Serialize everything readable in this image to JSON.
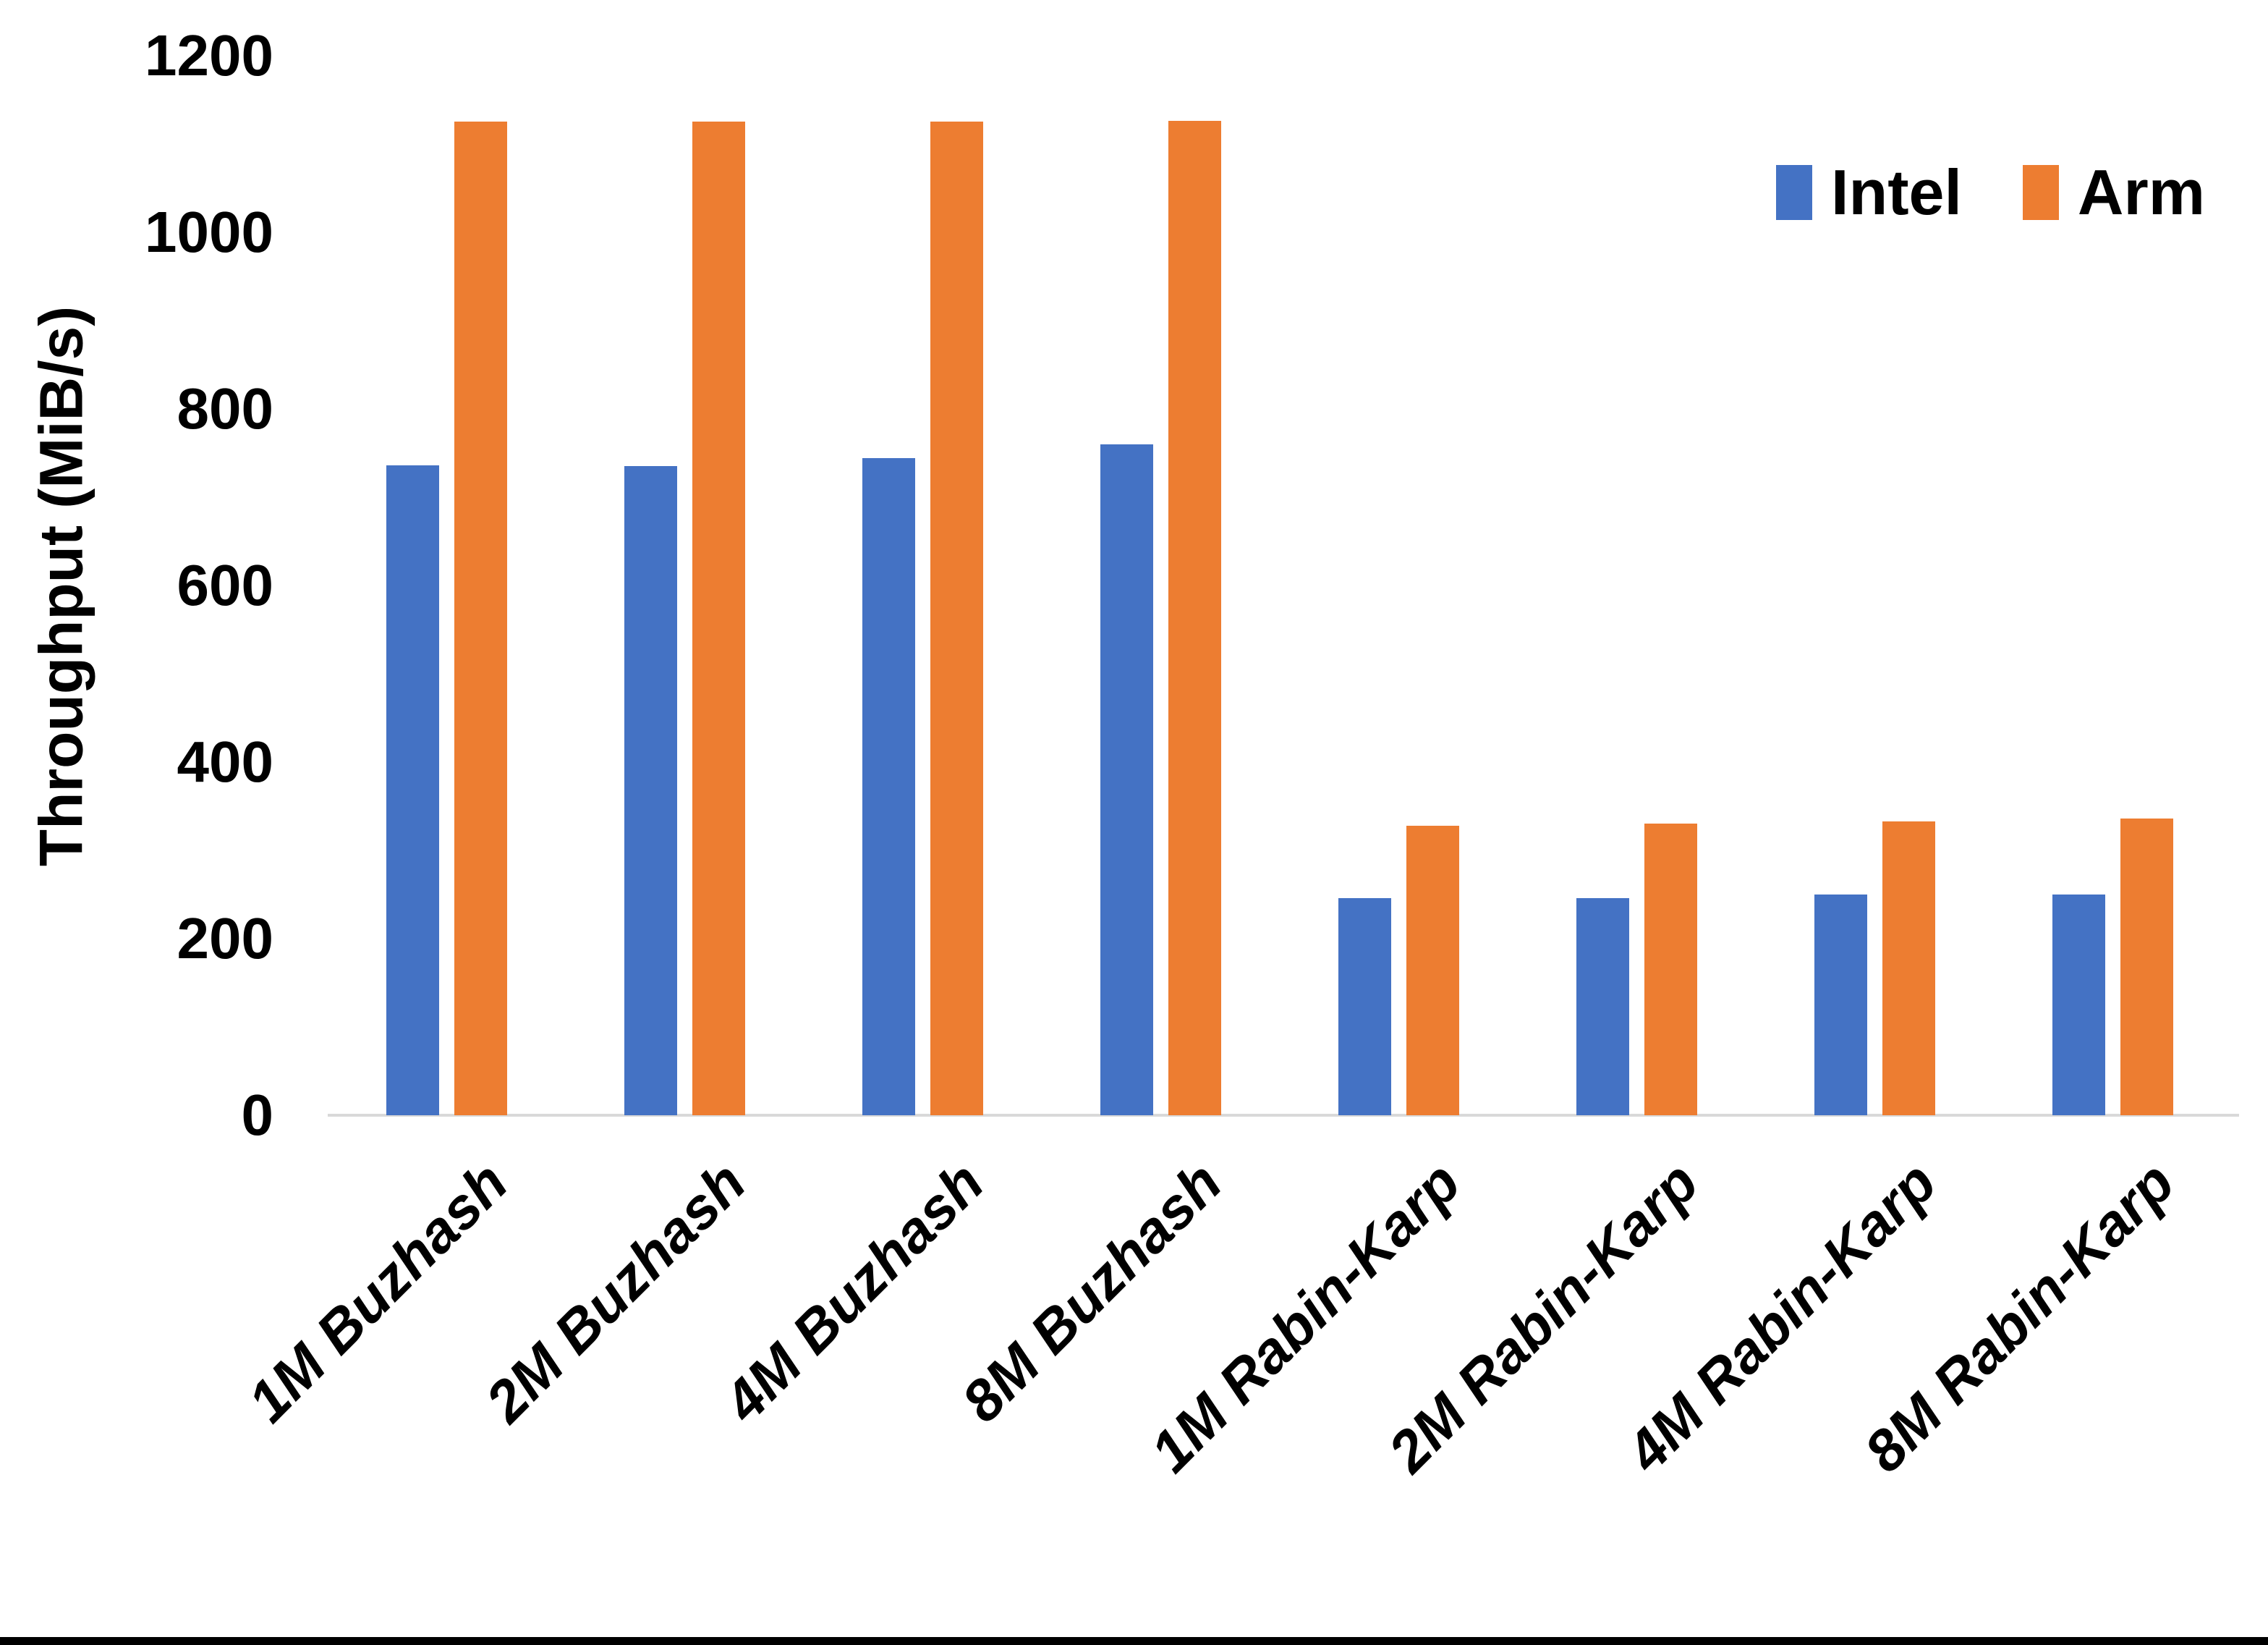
{
  "chart_data": {
    "type": "bar",
    "title": "",
    "xlabel": "",
    "ylabel": "Throughput (MiB/s)",
    "ylim": [
      0,
      1200
    ],
    "yticks": [
      0,
      200,
      400,
      600,
      800,
      1000,
      1200
    ],
    "grid": false,
    "legend_position": "top-right",
    "categories": [
      "1M Buzhash",
      "2M Buzhash",
      "4M Buzhash",
      "8M Buzhash",
      "1M Rabin-Karp",
      "2M Rabin-Karp",
      "4M Rabin-Karp",
      "8M Rabin-Karp"
    ],
    "series": [
      {
        "name": "Intel",
        "color": "#4472C4",
        "values": [
          736,
          735,
          744,
          760,
          246,
          246,
          250,
          250
        ]
      },
      {
        "name": "Arm",
        "color": "#ED7D31",
        "values": [
          1125,
          1125,
          1125,
          1126,
          328,
          330,
          333,
          336
        ]
      }
    ]
  },
  "colors": {
    "axis_line": "#d9d9d9",
    "text": "#000000",
    "background": "#ffffff",
    "bottom_border": "#000000"
  }
}
